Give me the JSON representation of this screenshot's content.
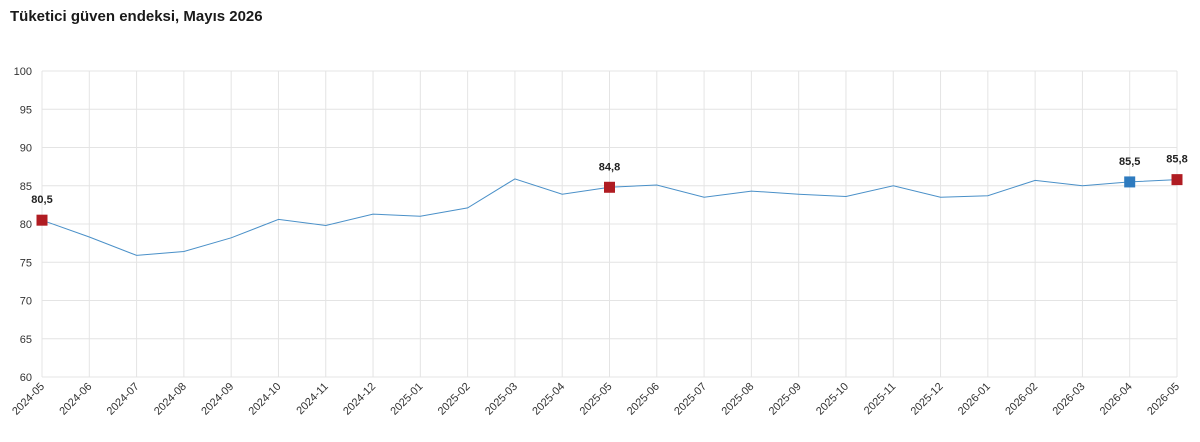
{
  "title": "Tüketici güven endeksi, Mayıs 2026",
  "chart_data": {
    "type": "line",
    "title": "Tüketici güven endeksi, Mayıs 2026",
    "xlabel": "",
    "ylabel": "",
    "ylim": [
      60,
      100
    ],
    "yticks": [
      60,
      65,
      70,
      75,
      80,
      85,
      90,
      95,
      100
    ],
    "grid": true,
    "line_color": "#4a90c8",
    "categories": [
      "2024-05",
      "2024-06",
      "2024-07",
      "2024-08",
      "2024-09",
      "2024-10",
      "2024-11",
      "2024-12",
      "2025-01",
      "2025-02",
      "2025-03",
      "2025-04",
      "2025-05",
      "2025-06",
      "2025-07",
      "2025-08",
      "2025-09",
      "2025-10",
      "2025-11",
      "2025-12",
      "2026-01",
      "2026-02",
      "2026-03",
      "2026-04",
      "2026-05"
    ],
    "values": [
      80.5,
      78.3,
      75.9,
      76.4,
      78.2,
      80.6,
      79.8,
      81.3,
      81.0,
      82.1,
      85.9,
      83.9,
      84.8,
      85.1,
      83.5,
      84.3,
      83.9,
      83.6,
      85.0,
      83.5,
      83.7,
      85.7,
      85.0,
      85.5,
      85.8
    ],
    "highlights": [
      {
        "index": 0,
        "label": "80,5",
        "color": "#b01c22"
      },
      {
        "index": 12,
        "label": "84,8",
        "color": "#b01c22"
      },
      {
        "index": 23,
        "label": "85,5",
        "color": "#2e7bbf"
      },
      {
        "index": 24,
        "label": "85,8",
        "color": "#b01c22"
      }
    ]
  }
}
